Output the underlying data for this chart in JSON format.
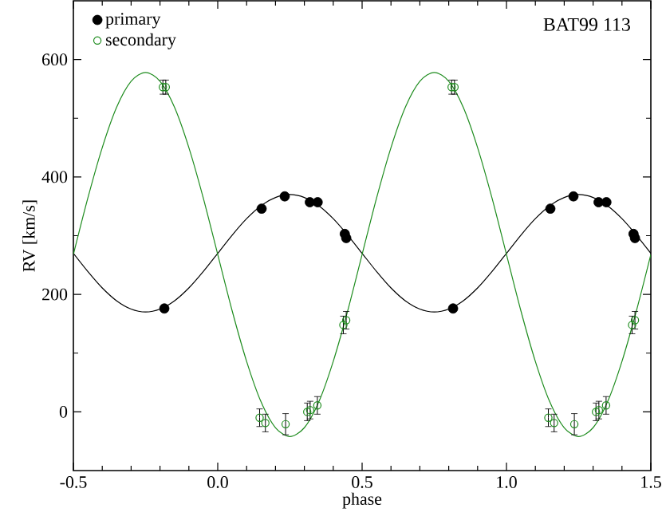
{
  "chart_data": {
    "type": "scatter",
    "xlabel": "phase",
    "ylabel": "RV [km/s]",
    "annotations": [
      "BAT99 113"
    ],
    "xlim": [
      -0.5,
      1.5
    ],
    "ylim": [
      -100,
      700
    ],
    "xticks": [
      {
        "value": -0.5,
        "label": "-0.5"
      },
      {
        "value": 0,
        "label": "0.0"
      },
      {
        "value": 0.5,
        "label": "0.5"
      },
      {
        "value": 1,
        "label": "1.0"
      },
      {
        "value": 1.5,
        "label": "1.5"
      }
    ],
    "yticks": [
      0,
      200,
      400,
      600
    ],
    "legend": "top left",
    "marker": "circle",
    "grid": false,
    "series": [
      {
        "type": "line",
        "marker": "none",
        "color": "#000000",
        "x": [
          -0.5,
          -0.45,
          -0.4,
          -0.35,
          -0.3,
          -0.25,
          -0.2,
          -0.15,
          -0.1,
          -0.05,
          0,
          0.05,
          0.1,
          0.15,
          0.2,
          0.25,
          0.3,
          0.35,
          0.4,
          0.45,
          0.5,
          0.55,
          0.6,
          0.65,
          0.7,
          0.75,
          0.8,
          0.85,
          0.9,
          0.95,
          1,
          1.05,
          1.1,
          1.15,
          1.2,
          1.25,
          1.3,
          1.35,
          1.4,
          1.45,
          1.5
        ],
        "values": [
          270,
          239,
          211,
          189,
          175,
          170,
          175,
          189,
          211,
          239,
          270,
          301,
          329,
          351,
          365,
          370,
          365,
          351,
          329,
          301,
          270,
          239,
          211,
          189,
          175,
          170,
          175,
          189,
          211,
          239,
          270,
          301,
          329,
          351,
          365,
          370,
          365,
          351,
          329,
          301,
          270
        ]
      },
      {
        "type": "line",
        "marker": "none",
        "color": "#1e8c1e",
        "x": [
          -0.5,
          -0.45,
          -0.4,
          -0.35,
          -0.3,
          -0.25,
          -0.2,
          -0.15,
          -0.1,
          -0.05,
          0,
          0.05,
          0.1,
          0.15,
          0.2,
          0.25,
          0.3,
          0.35,
          0.4,
          0.45,
          0.5,
          0.55,
          0.6,
          0.65,
          0.7,
          0.75,
          0.8,
          0.85,
          0.9,
          0.95,
          1,
          1.05,
          1.1,
          1.15,
          1.2,
          1.25,
          1.3,
          1.35,
          1.4,
          1.45,
          1.5
        ],
        "values": [
          268,
          364,
          450,
          519,
          563,
          578,
          563,
          519,
          450,
          364,
          268,
          172,
          86,
          17,
          -27,
          -42,
          -27,
          17,
          86,
          172,
          268,
          364,
          450,
          519,
          563,
          578,
          563,
          519,
          450,
          364,
          268,
          172,
          86,
          17,
          -27,
          -42,
          -27,
          17,
          86,
          172,
          268
        ]
      },
      {
        "name": "primary",
        "color": "#000000",
        "x": [
          -0.185,
          0.152,
          0.232,
          0.319,
          0.346,
          0.44,
          0.445,
          0.815,
          1.152,
          1.232,
          1.319,
          1.346,
          1.44,
          1.445
        ],
        "values": [
          176,
          346,
          367,
          357,
          357,
          303,
          296,
          176,
          346,
          367,
          357,
          357,
          303,
          296
        ]
      },
      {
        "name": "secondary",
        "color": "#1e8c1e",
        "x": [
          -0.19,
          -0.18,
          0.145,
          0.165,
          0.235,
          0.31,
          0.32,
          0.345,
          0.435,
          0.445,
          0.81,
          0.82,
          1.145,
          1.165,
          1.235,
          1.31,
          1.32,
          1.345,
          1.435,
          1.445
        ],
        "values": [
          553,
          553,
          -10,
          -19,
          -21,
          0,
          3,
          11,
          148,
          156,
          553,
          553,
          -10,
          -19,
          -21,
          0,
          3,
          11,
          148,
          156
        ],
        "errors": [
          12,
          12,
          15,
          15,
          18,
          15,
          15,
          15,
          15,
          15,
          12,
          12,
          15,
          15,
          18,
          15,
          15,
          15,
          15,
          15
        ]
      }
    ]
  }
}
